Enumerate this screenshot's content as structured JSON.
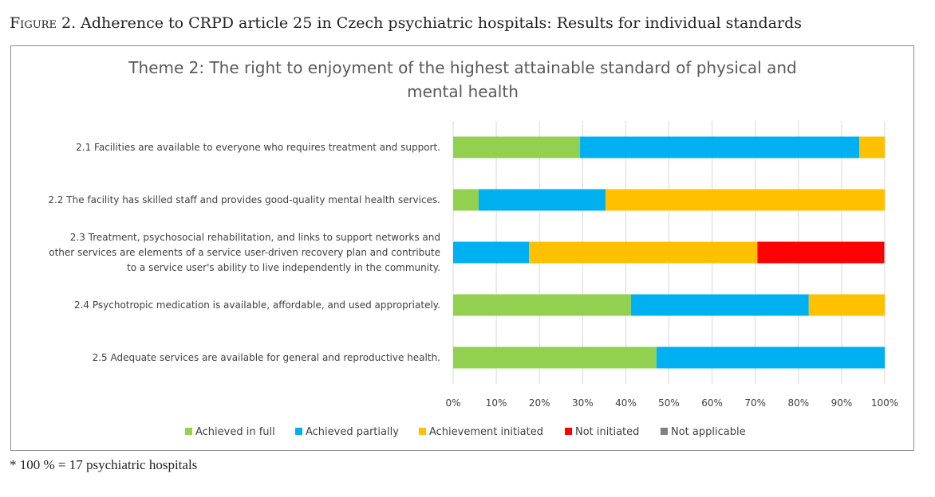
{
  "caption": {
    "prefix": "Figure 2.",
    "text": "Adherence to CRPD article 25 in Czech psychiatric hospitals: Results for individual standards"
  },
  "footnote": "* 100 % = 17 psychiatric hospitals",
  "chart_data": {
    "type": "bar",
    "orientation": "horizontal",
    "stacked": "percent",
    "title_lines": [
      "Theme 2: The right to enjoyment of the highest attainable standard of physical and",
      "mental health"
    ],
    "categories": [
      [
        "2.1 Facilities are available to everyone who requires treatment and support."
      ],
      [
        "2.2 The facility has skilled staff and provides good-quality mental health services."
      ],
      [
        "2.3 Treatment, psychosocial rehabilitation, and links to support networks and",
        "other services are elements of a service user-driven recovery plan and contribute",
        "to a service user's ability to live independently in the community."
      ],
      [
        "2.4 Psychotropic medication is available, affordable, and used appropriately."
      ],
      [
        "2.5 Adequate services are available for general and reproductive health."
      ]
    ],
    "series": [
      {
        "name": "Achieved in full",
        "color": "#92d050",
        "values": [
          29.4,
          5.9,
          0,
          41.2,
          47.1
        ]
      },
      {
        "name": "Achieved partially",
        "color": "#00b0f0",
        "values": [
          64.7,
          29.4,
          17.6,
          41.2,
          52.9
        ]
      },
      {
        "name": "Achievement initiated",
        "color": "#ffc000",
        "values": [
          5.9,
          64.7,
          52.9,
          17.6,
          0
        ]
      },
      {
        "name": "Not initiated",
        "color": "#ff0000",
        "values": [
          0,
          0,
          29.4,
          0,
          0
        ]
      },
      {
        "name": "Not applicable",
        "color": "#808080",
        "values": [
          0,
          0,
          0,
          0,
          0
        ]
      }
    ],
    "xlim": [
      0,
      100
    ],
    "xticks": [
      "0%",
      "10%",
      "20%",
      "30%",
      "40%",
      "50%",
      "60%",
      "70%",
      "80%",
      "90%",
      "100%"
    ],
    "grid": true,
    "legend_position": "bottom"
  }
}
